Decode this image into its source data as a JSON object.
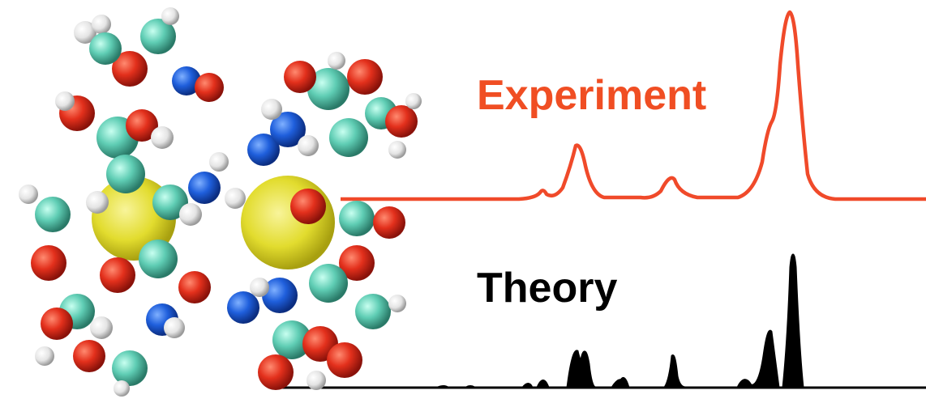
{
  "labels": {
    "experiment": "Experiment",
    "theory": "Theory"
  }
}
